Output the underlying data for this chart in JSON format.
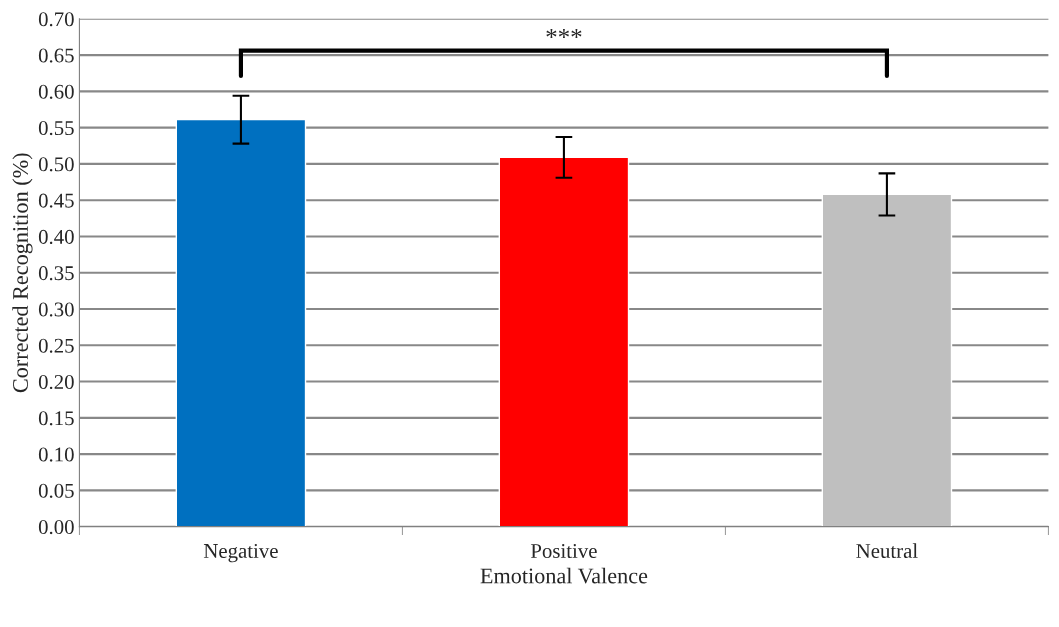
{
  "chart_data": {
    "type": "bar",
    "xlabel": "Emotional Valence",
    "ylabel": "Corrected Recognition (%)",
    "categories": [
      "Negative",
      "Positive",
      "Neutral"
    ],
    "values": [
      0.561,
      0.509,
      0.458
    ],
    "colors": [
      "#0070c0",
      "#ff0000",
      "#bfbfbf"
    ],
    "errors": [
      0.033,
      0.028,
      0.029
    ],
    "ylim": [
      0,
      0.7
    ],
    "yticks": [
      {
        "value": 0,
        "label": "0.00"
      },
      {
        "value": 0.05,
        "label": "0.05"
      },
      {
        "value": 0.1,
        "label": "0.10"
      },
      {
        "value": 0.15,
        "label": "0.15"
      },
      {
        "value": 0.2,
        "label": "0.20"
      },
      {
        "value": 0.25,
        "label": "0.25"
      },
      {
        "value": 0.3,
        "label": "0.30"
      },
      {
        "value": 0.35,
        "label": "0.35"
      },
      {
        "value": 0.4,
        "label": "0.40"
      },
      {
        "value": 0.45,
        "label": "0.45"
      },
      {
        "value": 0.5,
        "label": "0.50"
      },
      {
        "value": 0.55,
        "label": "0.55"
      },
      {
        "value": 0.6,
        "label": "0.60"
      },
      {
        "value": 0.65,
        "label": "0.65"
      },
      {
        "value": 0.7,
        "label": "0.70"
      }
    ],
    "grid": "y",
    "annotations": [
      "***"
    ]
  }
}
